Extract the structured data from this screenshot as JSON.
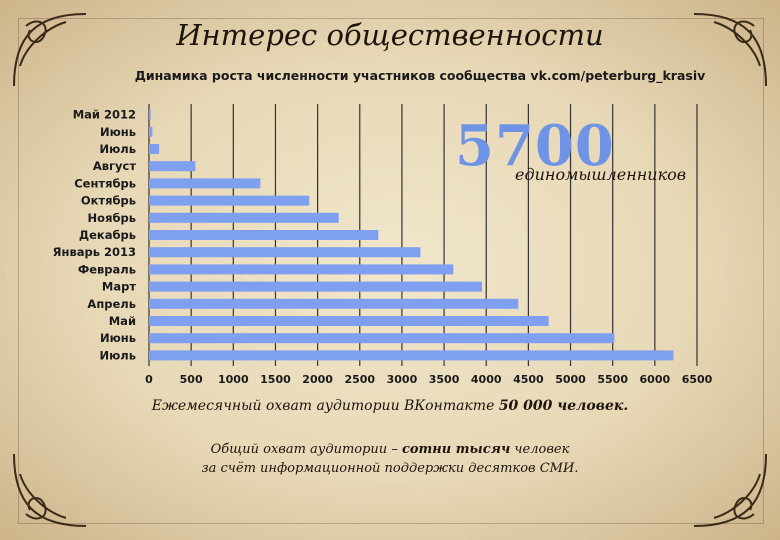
{
  "page": {
    "title": "Интерес общественности",
    "highlight_number": "5700",
    "highlight_caption": "единомышленников",
    "footer_line1_prefix": "Ежемесячный охват аудитории ВКонтакте ",
    "footer_line1_bold": "50 000 человек.",
    "footer_line2_prefix": "Общий охват аудитории – ",
    "footer_line2_bold": "сотни тысяч",
    "footer_line2_suffix": " человек",
    "footer_line3": "за счёт информационной поддержки десятков СМИ."
  },
  "colors": {
    "bar": "#7f9ff0",
    "grid": "#333333",
    "text": "#1a1a1a"
  },
  "chart_data": {
    "type": "bar",
    "orientation": "horizontal",
    "title": "Динамика роста численности участников сообщества vk.com/peterburg_krasiv",
    "xlabel": "",
    "ylabel": "",
    "xlim": [
      0,
      6500
    ],
    "xticks": [
      0,
      500,
      1000,
      1500,
      2000,
      2500,
      3000,
      3500,
      4000,
      4500,
      5000,
      5500,
      6000,
      6500
    ],
    "grid": true,
    "categories": [
      "Май 2012",
      "Июнь",
      "Июль",
      "Август",
      "Сентябрь",
      "Октябрь",
      "Ноябрь",
      "Декабрь",
      "Январь 2013",
      "Февраль",
      "Март",
      "Апрель",
      "Май",
      "Июнь",
      "Июль"
    ],
    "values": [
      20,
      40,
      120,
      550,
      1320,
      1900,
      2250,
      2720,
      3220,
      3610,
      3950,
      4380,
      4740,
      5520,
      6220
    ]
  }
}
